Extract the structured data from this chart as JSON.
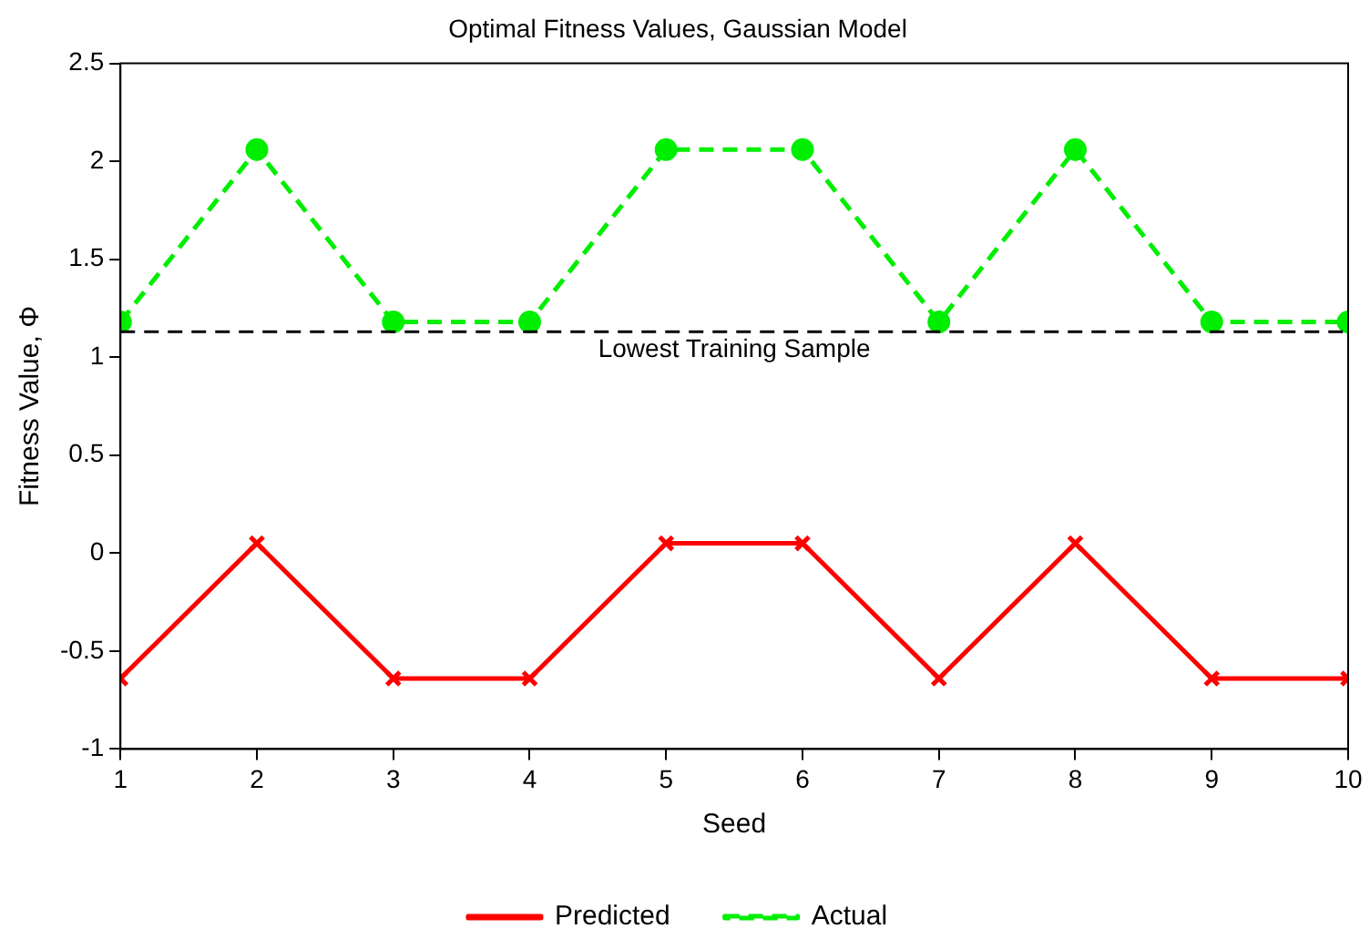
{
  "chart_data": {
    "type": "line",
    "title": "Optimal Fitness Values, Gaussian Model",
    "xlabel": "Seed",
    "ylabel": "Fitness Value, Φ",
    "x": [
      1,
      2,
      3,
      4,
      5,
      6,
      7,
      8,
      9,
      10
    ],
    "series": [
      {
        "name": "Predicted",
        "color": "#ff0000",
        "marker": "cross",
        "line_style": "solid",
        "values": [
          -0.64,
          0.05,
          -0.64,
          -0.64,
          0.05,
          0.05,
          -0.64,
          0.05,
          -0.64,
          -0.64
        ]
      },
      {
        "name": "Actual",
        "color": "#00ee00",
        "marker": "circle",
        "line_style": "dashed",
        "values": [
          1.18,
          2.06,
          1.18,
          1.18,
          2.06,
          2.06,
          1.18,
          2.06,
          1.18,
          1.18
        ]
      }
    ],
    "xlim": [
      1,
      10
    ],
    "xticks": [
      1,
      2,
      3,
      4,
      5,
      6,
      7,
      8,
      9,
      10
    ],
    "ylim": [
      -1,
      2.5
    ],
    "yticks": [
      -1,
      -0.5,
      0,
      0.5,
      1,
      1.5,
      2,
      2.5
    ],
    "ref_lines": [
      {
        "axis": "y",
        "value": 1.13,
        "label": "Lowest Training Sample",
        "color": "#000000",
        "line_style": "dashed"
      }
    ],
    "grid": false,
    "legend": "bottom"
  }
}
